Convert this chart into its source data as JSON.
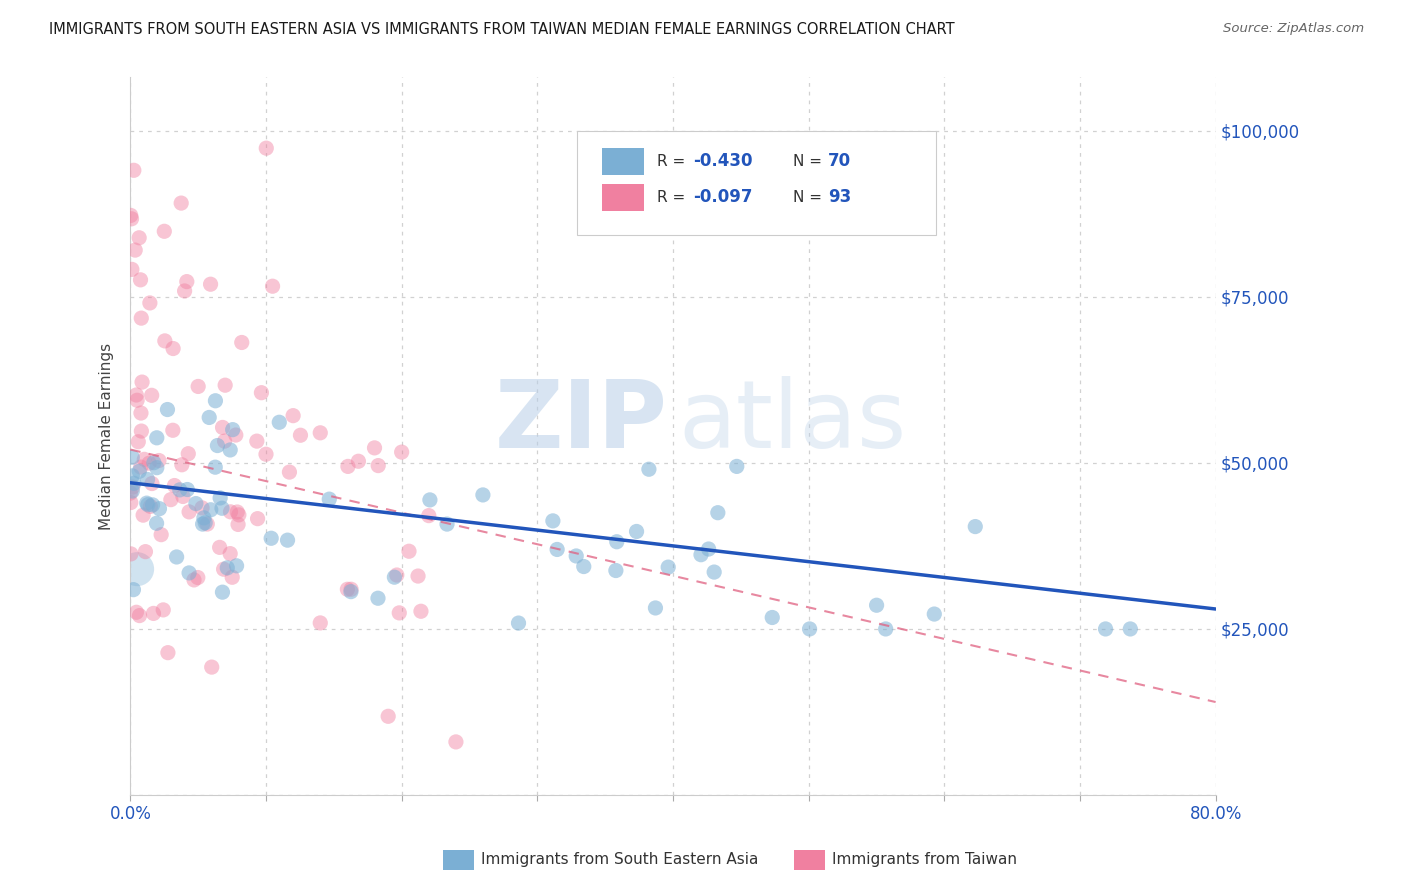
{
  "title": "IMMIGRANTS FROM SOUTH EASTERN ASIA VS IMMIGRANTS FROM TAIWAN MEDIAN FEMALE EARNINGS CORRELATION CHART",
  "source": "Source: ZipAtlas.com",
  "ylabel": "Median Female Earnings",
  "background_color": "#ffffff",
  "series1_color": "#7bafd4",
  "series2_color": "#f080a0",
  "series1_line_color": "#2255bb",
  "series2_line_color": "#e06080",
  "series1_label": "Immigrants from South Eastern Asia",
  "series2_label": "Immigrants from Taiwan",
  "title_color": "#1a1a1a",
  "axis_label_color": "#2255bb",
  "grid_color": "#cccccc",
  "xlim": [
    0.0,
    0.8
  ],
  "ylim": [
    0,
    108000
  ],
  "trendline1_x0": 0.0,
  "trendline1_y0": 47000,
  "trendline1_x1": 0.8,
  "trendline1_y1": 28000,
  "trendline2_x0": 0.0,
  "trendline2_y0": 52000,
  "trendline2_x1": 0.8,
  "trendline2_y1": 14000
}
